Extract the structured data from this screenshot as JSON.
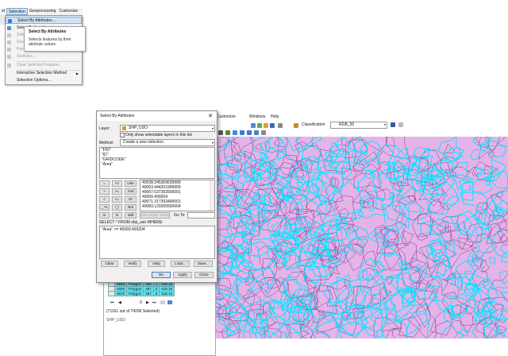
{
  "menubar": {
    "items": [
      "et",
      "Selection",
      "Geoprocessing",
      "Customize"
    ]
  },
  "dropdown": {
    "items": [
      {
        "label": "Select By Attributes...",
        "state": "highlight"
      },
      {
        "label": "Select By Location...",
        "state": "normal"
      },
      {
        "label": "Selec",
        "state": "disabled"
      },
      {
        "label": "Zoom",
        "state": "disabled"
      },
      {
        "label": "Pan",
        "state": "disabled"
      },
      {
        "label": "Statistics...",
        "state": "disabled"
      },
      {
        "label": "Clear Selected Features",
        "state": "disabled"
      },
      {
        "label": "Interactive Selection Method",
        "state": "normal",
        "arrow": "▶"
      },
      {
        "label": "Selection Options...",
        "state": "normal"
      }
    ]
  },
  "tooltip": {
    "title": "Select By Attributes",
    "body": "Selects features by their attribute values."
  },
  "map_toolbar": {
    "menu": [
      "Customize",
      "Windows",
      "Help"
    ],
    "classification": "Classification",
    "layer_select": "RGB_50"
  },
  "dialog": {
    "title": "Select By Attributes",
    "close": "✕",
    "layer_label": "Layer:",
    "layer_value": "SHP_USO",
    "only_selectable": "Only show selectable layers in this list",
    "method_label": "Method:",
    "method_value": "Create a new selection",
    "fields": [
      "\"FID\"",
      "\"ID\"",
      "\"GRIDCODE\"",
      "\"Area\""
    ],
    "operators": [
      [
        "=",
        "<>",
        "Like"
      ],
      [
        ">",
        ">=",
        "And"
      ],
      [
        "<",
        "<=",
        "Or"
      ],
      [
        "_ %",
        "( )",
        "Not"
      ],
      [
        "Is",
        "In",
        "Null"
      ]
    ],
    "values": [
      "40038.245369639999",
      "40053.444201999999",
      "40067.637392500001",
      "40069.499204",
      "40071.317393400001",
      "40083.120265500004"
    ],
    "get_unique": "Get Unique Values",
    "go_to": "Go To:",
    "select_from": "SELECT * FROM shp_uso WHERE:",
    "query": "\"Area\" >= 40069.499204",
    "buttons_row1": [
      "Clear",
      "Verify",
      "Help",
      "Load...",
      "Save..."
    ],
    "ok": "OK",
    "apply": "Apply",
    "close_btn": "Close"
  },
  "attr_table": {
    "rows": [
      [
        "",
        "4603",
        "Polygon",
        "460",
        "1",
        "616.16"
      ],
      [
        "",
        "4609",
        "Polygon",
        "467",
        "3",
        "616.16"
      ],
      [
        "",
        "4570",
        "Polygon",
        "467",
        "5",
        "616.16"
      ]
    ],
    "record_nav": "0",
    "selected_text": "(71161 out of 74296 Selected)",
    "tab_label": "SHP_USO"
  },
  "colors": {
    "map_fill": "#e4b3e8",
    "selection": "#00e5ff",
    "boundary": "#7a3a86"
  }
}
